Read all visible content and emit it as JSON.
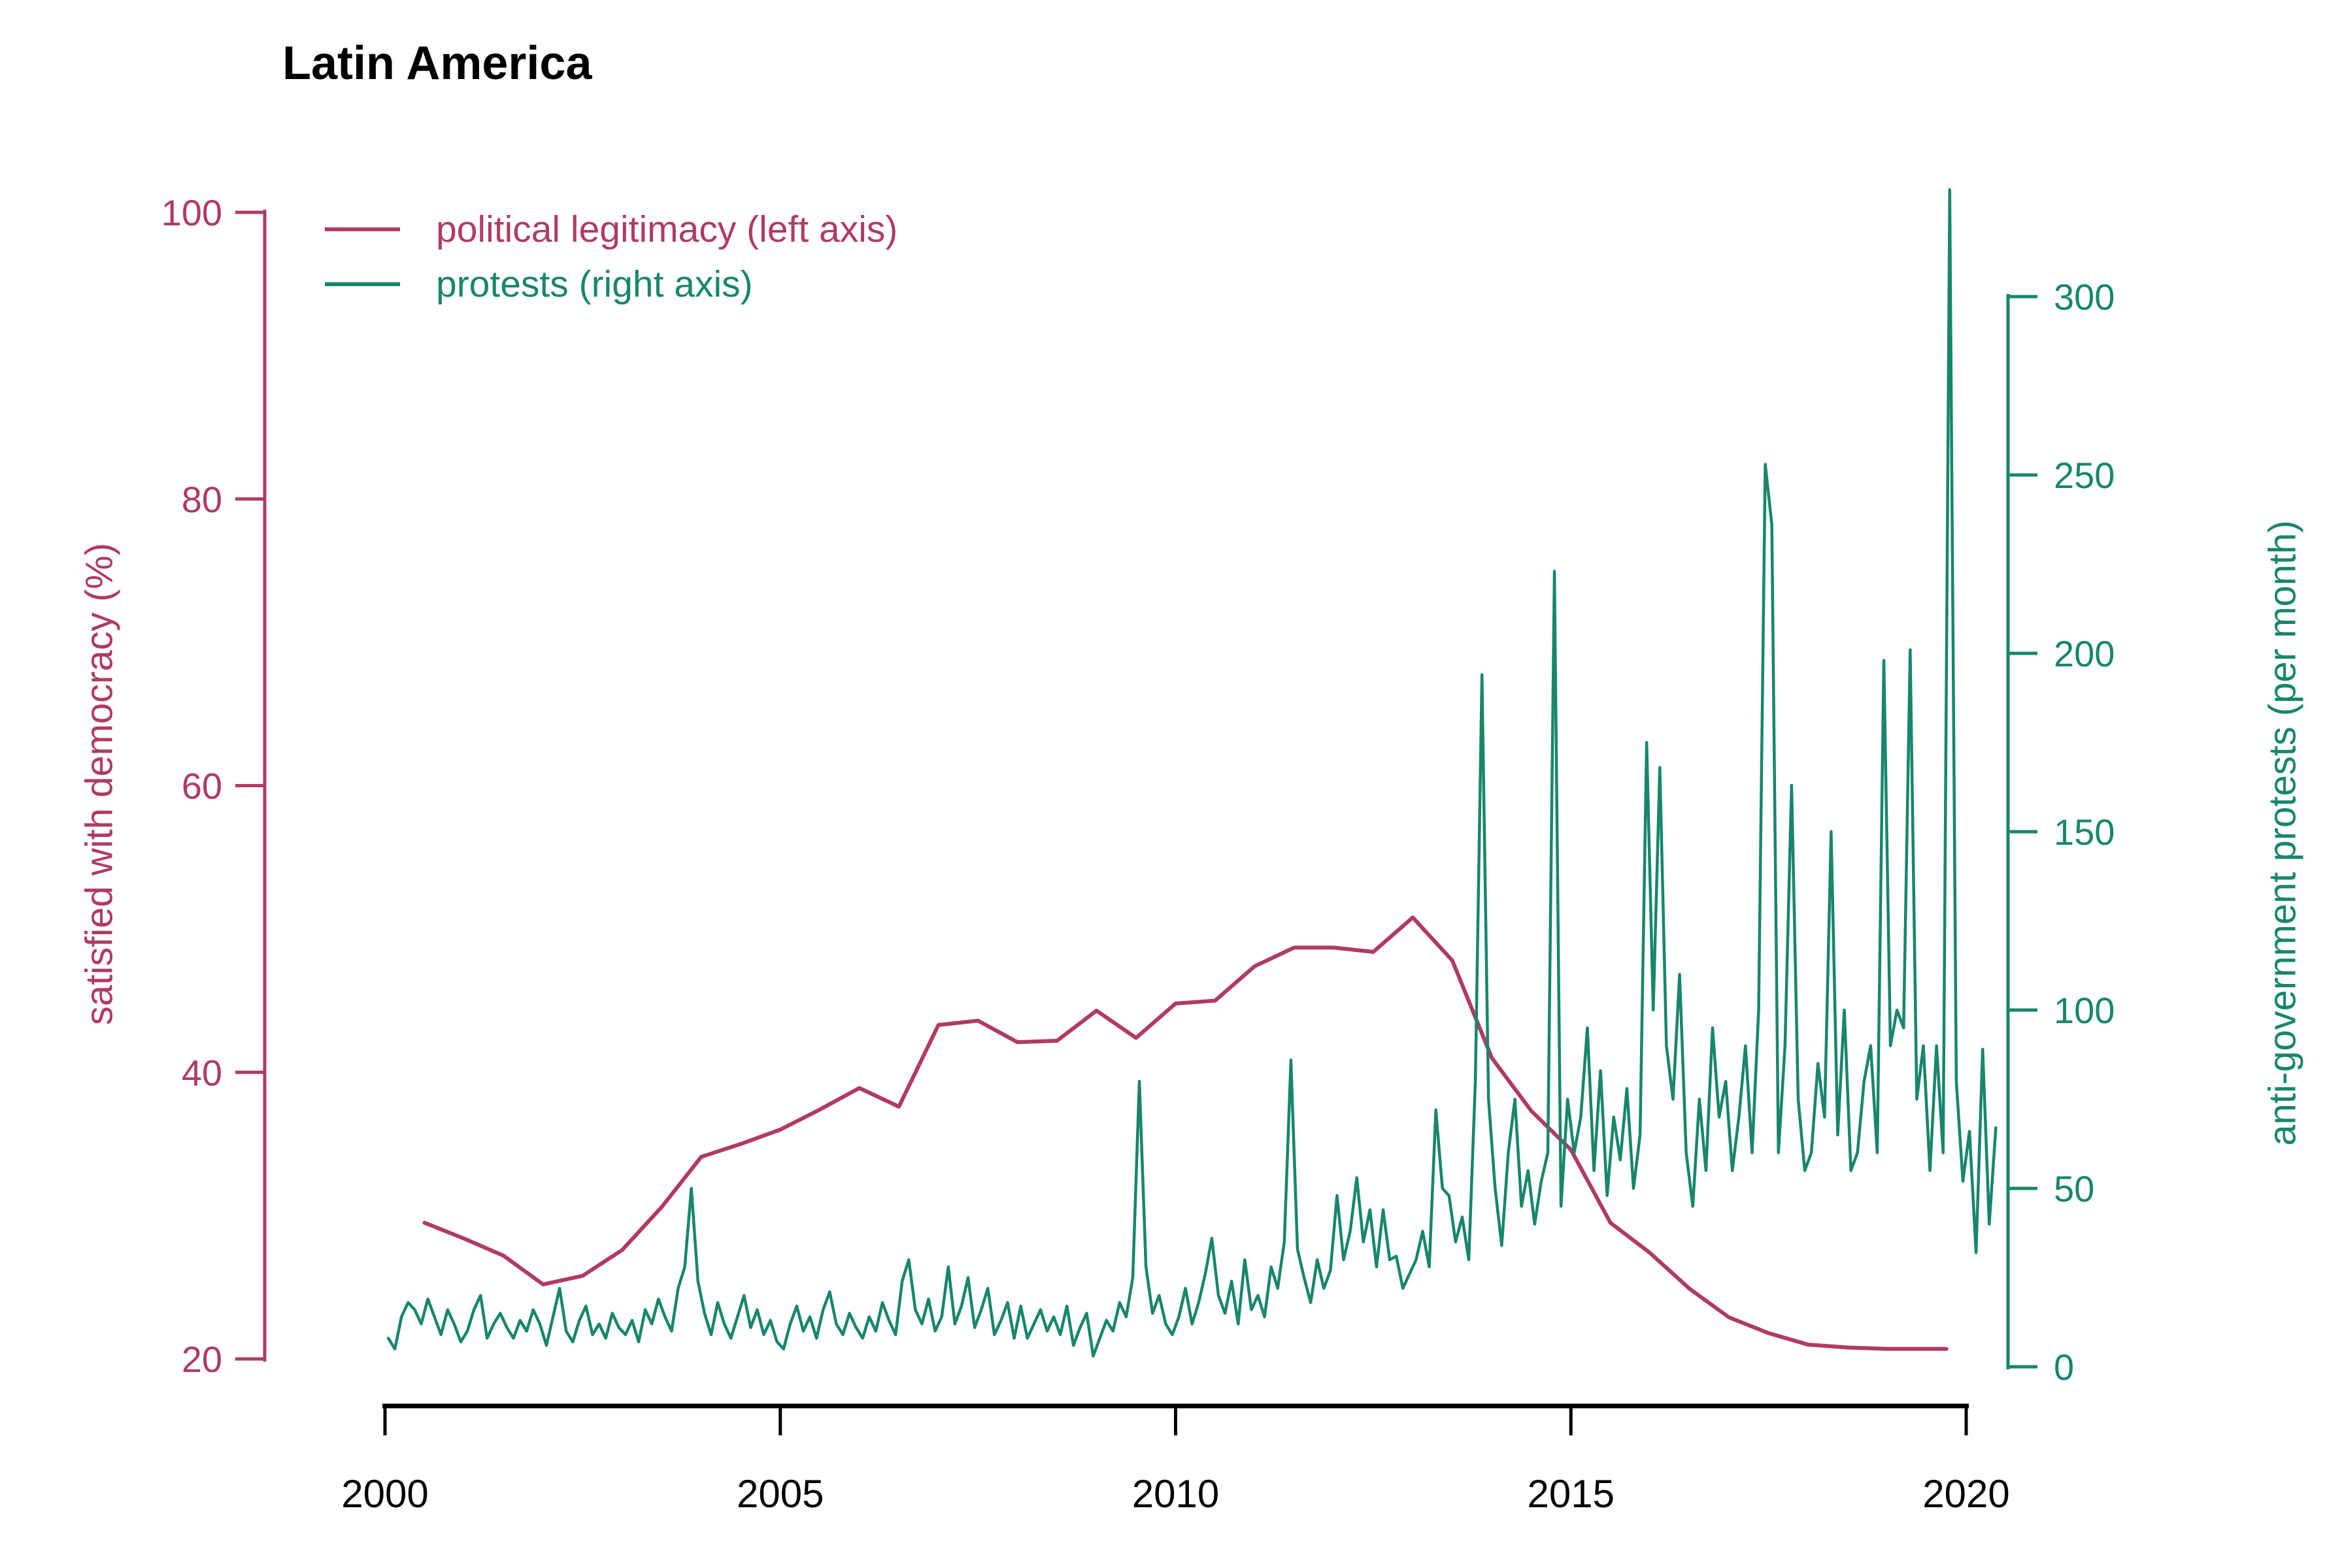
{
  "title": "Latin America",
  "colors": {
    "legitimacy": "#B03A66",
    "protests": "#17866C",
    "axis_black": "#000000",
    "background": "#FFFFFF"
  },
  "legend": [
    {
      "label": "political legitimacy (left axis)",
      "color": "#B03A66"
    },
    {
      "label": "protests (right axis)",
      "color": "#17866C"
    }
  ],
  "left_axis": {
    "title": "satisfied with democracy (%)",
    "color": "#B03A66",
    "ticks": [
      20,
      40,
      60,
      80,
      100
    ],
    "range": [
      20,
      100
    ]
  },
  "right_axis": {
    "title": "anti-government protests (per month)",
    "color": "#17866C",
    "ticks": [
      0,
      50,
      100,
      150,
      200,
      250,
      300
    ],
    "range": [
      0,
      300
    ]
  },
  "x_axis": {
    "ticks": [
      2000,
      2005,
      2010,
      2015,
      2020
    ],
    "color": "#000000"
  },
  "chart_data": {
    "type": "line",
    "title": "Latin America",
    "xlabel": "",
    "ylabel_left": "satisfied with democracy (%)",
    "ylabel_right": "anti-government protests (per month)",
    "xlim": [
      1999.6,
      2021.2
    ],
    "left_ylim": [
      20,
      100
    ],
    "right_ylim": [
      0,
      300
    ],
    "grid": false,
    "legend_position": "top-left",
    "series": [
      {
        "name": "political legitimacy (left axis)",
        "axis": "left",
        "color": "#B03A66",
        "x": [
          2000.5,
          2001.0,
          2001.5,
          2002.0,
          2002.5,
          2003.0,
          2003.5,
          2004.0,
          2004.5,
          2005.0,
          2005.5,
          2006.0,
          2006.5,
          2007.0,
          2007.5,
          2008.0,
          2008.5,
          2009.0,
          2009.5,
          2010.0,
          2010.5,
          2011.0,
          2011.5,
          2012.0,
          2012.5,
          2013.0,
          2013.5,
          2014.0,
          2014.5,
          2015.0,
          2015.5,
          2016.0,
          2016.5,
          2017.0,
          2017.5,
          2018.0,
          2018.5,
          2019.0,
          2019.5,
          2019.75
        ],
        "values": [
          29.5,
          28.4,
          27.2,
          25.2,
          25.8,
          27.6,
          30.6,
          34.1,
          35.0,
          36.0,
          37.4,
          38.9,
          37.6,
          43.3,
          43.6,
          42.1,
          42.2,
          44.3,
          42.4,
          44.8,
          45.0,
          47.4,
          48.7,
          48.7,
          48.4,
          50.8,
          47.8,
          41.0,
          37.3,
          34.6,
          29.5,
          27.4,
          24.9,
          22.9,
          21.8,
          21.0,
          20.8,
          20.7,
          20.7,
          20.7
        ]
      },
      {
        "name": "protests (right axis)",
        "axis": "right",
        "color": "#17866C",
        "x_start_year": 2000,
        "x_step_months": 1,
        "values": [
          8,
          5,
          14,
          18,
          16,
          12,
          19,
          14,
          9,
          16,
          12,
          7,
          10,
          16,
          20,
          8,
          12,
          15,
          11,
          8,
          13,
          10,
          16,
          12,
          6,
          14,
          22,
          10,
          7,
          13,
          17,
          9,
          12,
          8,
          15,
          11,
          9,
          13,
          7,
          16,
          12,
          19,
          14,
          10,
          22,
          28,
          50,
          24,
          15,
          9,
          18,
          12,
          8,
          14,
          20,
          11,
          16,
          9,
          13,
          7,
          5,
          12,
          17,
          10,
          14,
          8,
          16,
          21,
          12,
          9,
          15,
          11,
          8,
          14,
          10,
          18,
          13,
          9,
          24,
          30,
          16,
          12,
          19,
          10,
          14,
          28,
          12,
          17,
          25,
          11,
          16,
          22,
          9,
          13,
          18,
          8,
          17,
          8,
          12,
          16,
          10,
          14,
          9,
          17,
          6,
          11,
          15,
          3,
          8,
          13,
          10,
          18,
          14,
          25,
          80,
          28,
          15,
          20,
          12,
          9,
          14,
          22,
          12,
          18,
          26,
          36,
          20,
          15,
          24,
          12,
          30,
          16,
          20,
          14,
          28,
          22,
          35,
          86,
          33,
          25,
          18,
          30,
          22,
          27,
          48,
          30,
          38,
          53,
          35,
          44,
          28,
          44,
          30,
          31,
          22,
          26,
          30,
          38,
          28,
          72,
          50,
          48,
          35,
          42,
          30,
          80,
          194,
          75,
          50,
          34,
          60,
          75,
          45,
          55,
          40,
          52,
          60,
          223,
          45,
          75,
          60,
          70,
          95,
          55,
          83,
          48,
          70,
          58,
          78,
          50,
          65,
          175,
          100,
          168,
          90,
          75,
          110,
          60,
          45,
          75,
          55,
          95,
          70,
          80,
          55,
          70,
          90,
          60,
          100,
          253,
          236,
          60,
          90,
          163,
          75,
          55,
          60,
          85,
          70,
          150,
          65,
          100,
          55,
          60,
          80,
          90,
          60,
          198,
          90,
          100,
          95,
          201,
          75,
          90,
          55,
          90,
          60,
          330,
          80,
          52,
          66,
          32,
          89,
          40,
          67
        ]
      }
    ]
  }
}
